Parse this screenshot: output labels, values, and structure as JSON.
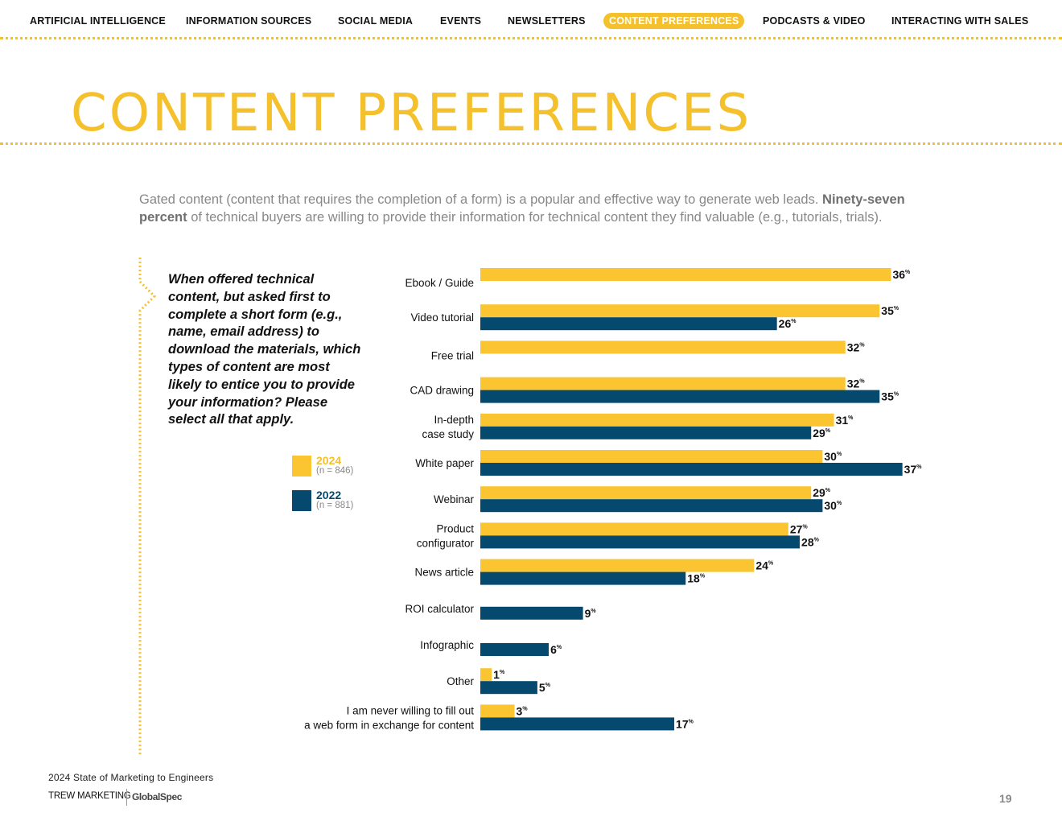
{
  "nav": {
    "items": [
      "ARTIFICIAL INTELLIGENCE",
      "INFORMATION SOURCES",
      "SOCIAL MEDIA",
      "EVENTS",
      "NEWSLETTERS",
      "CONTENT PREFERENCES",
      "PODCASTS & VIDEO",
      "INTERACTING WITH SALES"
    ],
    "active": "CONTENT PREFERENCES"
  },
  "page_title": "CONTENT PREFERENCES",
  "intro": {
    "line1": "Gated content (content that requires the completion of a form) is a popular and effective way to generate web leads.",
    "bold": "Ninety-seven percent",
    "rest": " of technical buyers are willing to provide their information for technical content they find valuable (e.g., tutorials, trials)."
  },
  "question": "When offered technical content, but asked first to complete a short form (e.g., name, email address) to download the materials, which types of content are most likely to entice you to provide your information? Please select all that apply.",
  "legend": [
    {
      "year": "2024",
      "n": "(n = 846)"
    },
    {
      "year": "2022",
      "n": "(n = 881)"
    }
  ],
  "colors": {
    "accent": "#f4c02c",
    "y2024": "#fbc531",
    "y2022": "#054a6e"
  },
  "chart_data": {
    "type": "bar",
    "orientation": "horizontal",
    "unit": "%",
    "categories": [
      "Ebook / Guide",
      "Video tutorial",
      "Free trial",
      "CAD drawing",
      "In-depth case study",
      "White paper",
      "Webinar",
      "Product configurator",
      "News article",
      "ROI calculator",
      "Infographic",
      "Other",
      "I am never willing to fill out a web form in exchange for content"
    ],
    "category_lines": [
      [
        "Ebook / Guide"
      ],
      [
        "Video tutorial"
      ],
      [
        "Free trial"
      ],
      [
        "CAD drawing"
      ],
      [
        "In-depth",
        "case study"
      ],
      [
        "White paper"
      ],
      [
        "Webinar"
      ],
      [
        "Product",
        "configurator"
      ],
      [
        "News article"
      ],
      [
        "ROI calculator"
      ],
      [
        "Infographic"
      ],
      [
        "Other"
      ],
      [
        "I am never willing to fill out",
        "a web form in exchange for content"
      ]
    ],
    "series": [
      {
        "name": "2024",
        "values": [
          36,
          35,
          32,
          32,
          31,
          30,
          29,
          27,
          24,
          null,
          null,
          1,
          3
        ]
      },
      {
        "name": "2022",
        "values": [
          null,
          26,
          null,
          35,
          29,
          37,
          30,
          28,
          18,
          9,
          6,
          5,
          17
        ]
      }
    ],
    "xlim": [
      0,
      40
    ]
  },
  "footer": {
    "report": "2024 State of Marketing to Engineers",
    "logo_left": "TREW MARKETING",
    "logo_right": "GlobalSpec",
    "page_number": "19"
  }
}
